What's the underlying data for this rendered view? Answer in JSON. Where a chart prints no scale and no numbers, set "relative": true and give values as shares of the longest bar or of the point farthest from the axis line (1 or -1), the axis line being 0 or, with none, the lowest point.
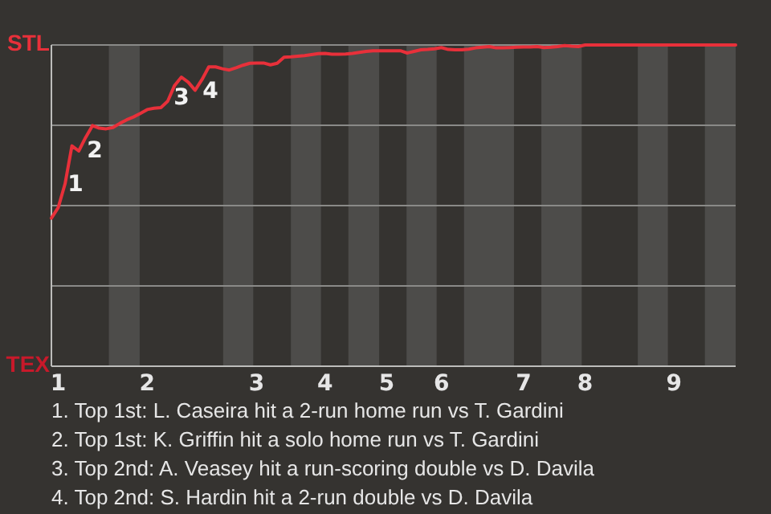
{
  "chart_data": {
    "type": "line",
    "relative": true,
    "grid": "y",
    "categories": [
      null,
      "1",
      null,
      null,
      null,
      null,
      null,
      null,
      null,
      null,
      null,
      null,
      null,
      null,
      "2",
      null,
      null,
      null,
      null,
      null,
      null,
      null,
      null,
      null,
      null,
      null,
      null,
      null,
      null,
      null,
      "3",
      null,
      null,
      null,
      null,
      null,
      null,
      null,
      null,
      null,
      "4",
      null,
      null,
      null,
      null,
      null,
      null,
      null,
      null,
      "5",
      null,
      null,
      null,
      null,
      null,
      null,
      null,
      "6",
      null,
      null,
      null,
      null,
      null,
      null,
      null,
      null,
      null,
      null,
      null,
      "7",
      null,
      null,
      null,
      null,
      null,
      null,
      null,
      null,
      "8",
      null,
      null,
      null,
      null,
      null,
      null,
      null,
      null,
      null,
      null,
      null,
      null,
      "9",
      null,
      null,
      null,
      null,
      null,
      null,
      null,
      null,
      null
    ],
    "series": [
      {
        "color": "#e8303a",
        "values": [
          0.461,
          0.494,
          0.568,
          0.686,
          0.67,
          0.712,
          0.749,
          0.741,
          0.739,
          0.743,
          0.756,
          0.767,
          0.776,
          0.787,
          0.799,
          0.803,
          0.805,
          0.825,
          0.874,
          0.9,
          0.884,
          0.859,
          0.892,
          0.932,
          0.932,
          0.926,
          0.922,
          0.929,
          0.937,
          0.943,
          0.944,
          0.944,
          0.938,
          0.943,
          0.962,
          0.963,
          0.965,
          0.967,
          0.97,
          0.973,
          0.974,
          0.971,
          0.971,
          0.972,
          0.974,
          0.977,
          0.98,
          0.982,
          0.982,
          0.982,
          0.982,
          0.982,
          0.975,
          0.98,
          0.985,
          0.986,
          0.988,
          0.992,
          0.986,
          0.985,
          0.985,
          0.987,
          0.991,
          0.993,
          0.995,
          0.991,
          0.991,
          0.992,
          0.993,
          0.994,
          0.994,
          0.995,
          0.992,
          0.993,
          0.995,
          0.998,
          0.996,
          0.995,
          1,
          1,
          1,
          1,
          1,
          1,
          1,
          1,
          1,
          1,
          1,
          1,
          1,
          1,
          1,
          1,
          1,
          1,
          1,
          1,
          1,
          1,
          1
        ]
      }
    ],
    "annotations": [
      "STL",
      "TEX",
      "1",
      "2",
      "3",
      "4",
      "1. Top 1st: L. Caseira hit a 2-run home run vs T. Gardini",
      "2. Top 1st: K. Griffin hit a solo home run vs T. Gardini",
      "3. Top 2nd: A. Veasey hit a run-scoring double vs D. Davila",
      "4. Top 2nd: S. Hardin hit a 2-run double vs D. Davila"
    ]
  }
}
